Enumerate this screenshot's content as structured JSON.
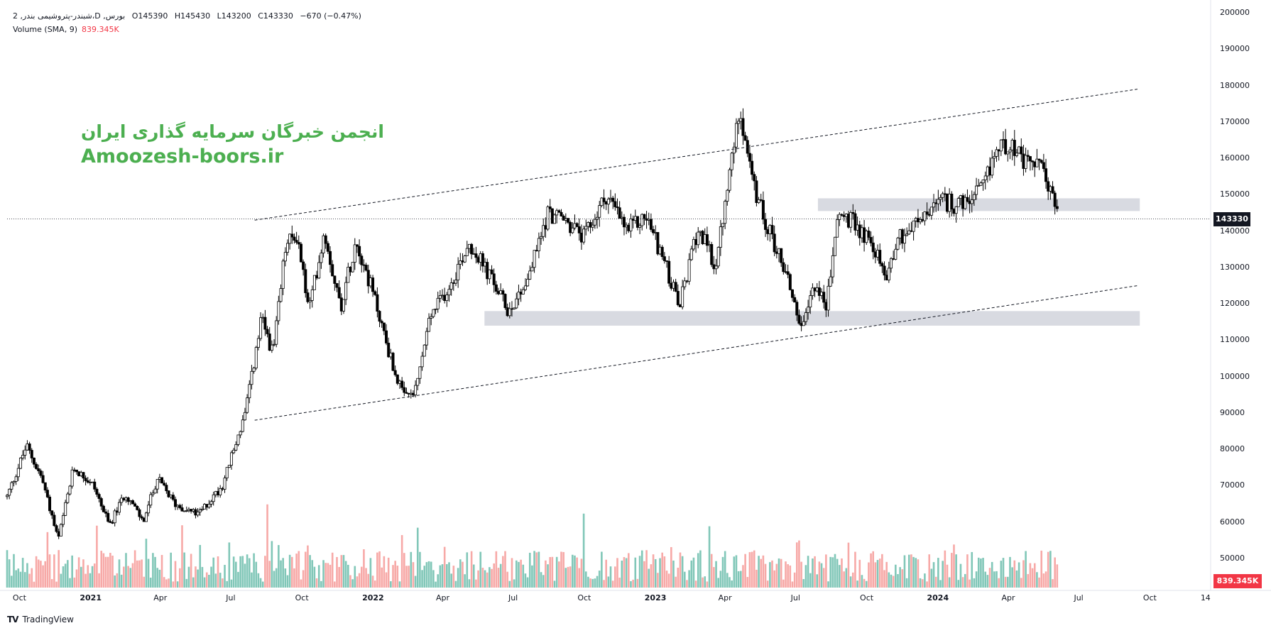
{
  "legend": {
    "symbol_line": "2 ,شبندر-پتروشیمی بندر،D ,بورس",
    "ohlc": {
      "O": "O145390",
      "H": "H145430",
      "L": "L143200",
      "C": "C143330",
      "change": "−670 (−0.47%)"
    },
    "volume_label": "Volume (SMA, 9)",
    "volume_value": "839.345K"
  },
  "watermark": {
    "persian": "انجمن خبرگان سرمایه گذاری ایران",
    "site": "Amoozesh-boors.ir"
  },
  "price_tags": {
    "last": "143330",
    "volume": "839.345K"
  },
  "footer": {
    "brand_mark": "TV",
    "brand": "TradingView"
  },
  "colors": {
    "up": "#ffffff",
    "down": "#000000",
    "vol_up": "#81c7b8",
    "vol_down": "#f7a9a7",
    "zone": "#d1d4dc",
    "tag_dark": "#131722",
    "tag_red": "#f23645",
    "watermark": "#4caf50"
  },
  "chart_data": {
    "type": "candlestick",
    "y_axis": {
      "ticks": [
        50000,
        60000,
        70000,
        80000,
        90000,
        100000,
        110000,
        120000,
        130000,
        140000,
        150000,
        160000,
        170000,
        180000,
        190000,
        200000
      ],
      "tick_labels": [
        "50000",
        "60000",
        "70000",
        "80000",
        "90000",
        "100000",
        "110000",
        "120000",
        "130000",
        "140000",
        "150000",
        "160000",
        "170000",
        "180000",
        "190000",
        "200000"
      ],
      "range": [
        42000,
        200000
      ]
    },
    "x_axis": {
      "tick_labels": [
        "Oct",
        "2021",
        "Apr",
        "Jul",
        "Oct",
        "2022",
        "Apr",
        "Jul",
        "Oct",
        "2023",
        "Apr",
        "Jul",
        "Oct",
        "2024",
        "Apr",
        "Jul",
        "Oct",
        "14"
      ],
      "year_labels": [
        "2021",
        "2022",
        "2023",
        "2024"
      ],
      "range": [
        "2020-09-15",
        "2024-12-14"
      ]
    },
    "last_price": 143330,
    "price_path": [
      [
        "2020-09-15",
        67000
      ],
      [
        "2020-10-10",
        81000
      ],
      [
        "2020-10-30",
        72000
      ],
      [
        "2020-11-20",
        55000
      ],
      [
        "2020-12-10",
        75000
      ],
      [
        "2021-01-05",
        70000
      ],
      [
        "2021-01-25",
        59000
      ],
      [
        "2021-02-15",
        68000
      ],
      [
        "2021-03-10",
        60000
      ],
      [
        "2021-03-28",
        72000
      ],
      [
        "2021-04-20",
        65000
      ],
      [
        "2021-05-20",
        62000
      ],
      [
        "2021-06-20",
        70000
      ],
      [
        "2021-07-20",
        90000
      ],
      [
        "2021-08-10",
        116000
      ],
      [
        "2021-08-25",
        106000
      ],
      [
        "2021-09-10",
        136000
      ],
      [
        "2021-09-25",
        139000
      ],
      [
        "2021-10-10",
        118000
      ],
      [
        "2021-10-30",
        140000
      ],
      [
        "2021-11-20",
        119000
      ],
      [
        "2021-12-10",
        138000
      ],
      [
        "2022-01-05",
        120000
      ],
      [
        "2022-01-25",
        104000
      ],
      [
        "2022-02-10",
        94000
      ],
      [
        "2022-02-25",
        96000
      ],
      [
        "2022-03-15",
        116000
      ],
      [
        "2022-04-10",
        125000
      ],
      [
        "2022-05-05",
        137000
      ],
      [
        "2022-06-05",
        126000
      ],
      [
        "2022-06-25",
        118000
      ],
      [
        "2022-07-20",
        127000
      ],
      [
        "2022-08-15",
        145000
      ],
      [
        "2022-09-05",
        143000
      ],
      [
        "2022-10-01",
        138000
      ],
      [
        "2022-10-30",
        150000
      ],
      [
        "2022-11-25",
        140000
      ],
      [
        "2022-12-20",
        144000
      ],
      [
        "2023-01-10",
        133000
      ],
      [
        "2023-02-01",
        119000
      ],
      [
        "2023-02-25",
        141000
      ],
      [
        "2023-03-20",
        130000
      ],
      [
        "2023-04-10",
        160000
      ],
      [
        "2023-04-20",
        175000
      ],
      [
        "2023-05-01",
        160000
      ],
      [
        "2023-05-10",
        150000
      ],
      [
        "2023-06-01",
        138000
      ],
      [
        "2023-06-20",
        128000
      ],
      [
        "2023-07-10",
        112000
      ],
      [
        "2023-07-25",
        126000
      ],
      [
        "2023-08-10",
        119000
      ],
      [
        "2023-08-25",
        145000
      ],
      [
        "2023-09-15",
        142000
      ],
      [
        "2023-10-10",
        136000
      ],
      [
        "2023-10-25",
        127000
      ],
      [
        "2023-11-10",
        138000
      ],
      [
        "2023-12-05",
        142000
      ],
      [
        "2024-01-05",
        148000
      ],
      [
        "2024-02-05",
        147000
      ],
      [
        "2024-03-01",
        152000
      ],
      [
        "2024-03-15",
        162000
      ],
      [
        "2024-04-05",
        165000
      ],
      [
        "2024-04-20",
        158000
      ],
      [
        "2024-05-05",
        159000
      ],
      [
        "2024-05-20",
        155000
      ],
      [
        "2024-06-05",
        143330
      ]
    ],
    "annotations": {
      "upper_trendline": [
        [
          "2021-08-01",
          143000
        ],
        [
          "2024-09-15",
          179000
        ]
      ],
      "lower_trendline": [
        [
          "2021-08-01",
          88000
        ],
        [
          "2024-09-15",
          125000
        ]
      ],
      "zones": [
        {
          "start": "2022-05-25",
          "end": "2024-09-18",
          "low": 114000,
          "high": 118000
        },
        {
          "start": "2023-07-30",
          "end": "2024-09-18",
          "low": 145500,
          "high": 149000
        }
      ],
      "last_price_line": 143330
    },
    "volume": {
      "label": "Volume (SMA, 9)",
      "value": "839.345K"
    }
  }
}
